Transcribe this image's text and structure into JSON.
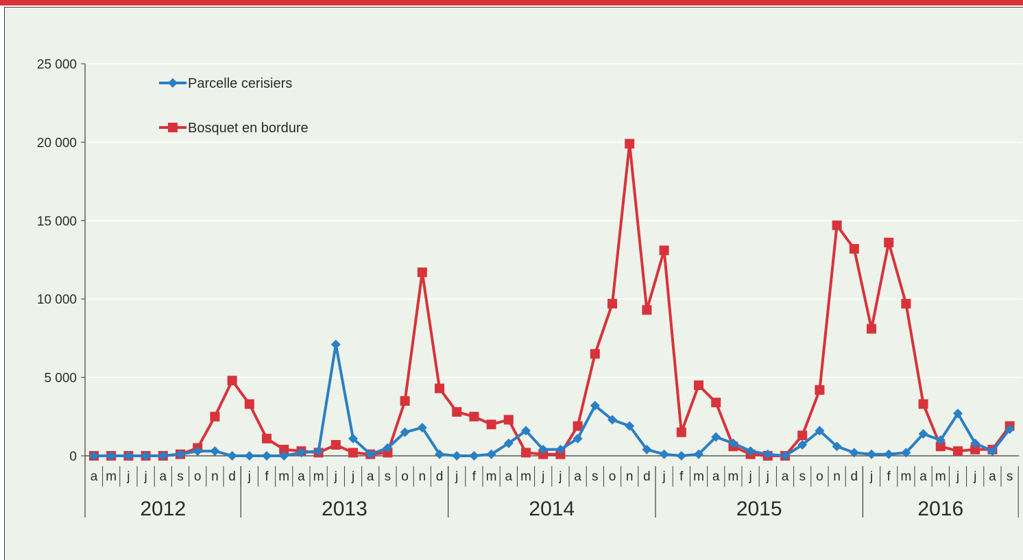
{
  "chart_data": {
    "type": "line",
    "title": "",
    "xlabel": "",
    "ylabel": "",
    "ylim": [
      0,
      25000
    ],
    "yticks": [
      0,
      5000,
      10000,
      15000,
      20000,
      25000
    ],
    "ytick_labels": [
      "0",
      "5 000",
      "10 000",
      "15 000",
      "20 000",
      "25 000"
    ],
    "grid": "horizontal",
    "legend_position": "top-left",
    "x": [
      "a",
      "m",
      "j",
      "j",
      "a",
      "s",
      "o",
      "n",
      "d",
      "j",
      "f",
      "m",
      "a",
      "m",
      "j",
      "j",
      "a",
      "s",
      "o",
      "n",
      "d",
      "j",
      "f",
      "m",
      "a",
      "m",
      "j",
      "j",
      "a",
      "s",
      "o",
      "n",
      "d",
      "j",
      "f",
      "m",
      "a",
      "m",
      "j",
      "j",
      "a",
      "s",
      "o",
      "n",
      "d",
      "j",
      "f",
      "m",
      "a",
      "m",
      "j",
      "j",
      "a",
      "s"
    ],
    "years": [
      {
        "label": "2012",
        "start": 0,
        "count": 9
      },
      {
        "label": "2013",
        "start": 9,
        "count": 12
      },
      {
        "label": "2014",
        "start": 21,
        "count": 12
      },
      {
        "label": "2015",
        "start": 33,
        "count": 12
      },
      {
        "label": "2016",
        "start": 45,
        "count": 9
      }
    ],
    "series": [
      {
        "name": "Parcelle cerisiers",
        "color": "#2b7fc4",
        "marker": "diamond",
        "values": [
          0,
          0,
          0,
          0,
          0,
          100,
          300,
          300,
          0,
          0,
          0,
          0,
          200,
          300,
          7100,
          1100,
          100,
          500,
          1500,
          1800,
          100,
          0,
          0,
          100,
          800,
          1600,
          400,
          400,
          1100,
          3200,
          2300,
          1900,
          400,
          100,
          0,
          100,
          1200,
          800,
          300,
          100,
          0,
          700,
          1600,
          600,
          200,
          100,
          100,
          200,
          1400,
          1000,
          2700,
          800,
          300,
          1700
        ]
      },
      {
        "name": "Bosquet en bordure",
        "color": "#d8333a",
        "marker": "square",
        "values": [
          0,
          0,
          0,
          0,
          0,
          100,
          500,
          2500,
          4800,
          3300,
          1100,
          400,
          300,
          200,
          700,
          200,
          100,
          200,
          3500,
          11700,
          4300,
          2800,
          2500,
          2000,
          2300,
          200,
          100,
          100,
          1900,
          6500,
          9700,
          19900,
          9300,
          13100,
          1500,
          4500,
          3400,
          600,
          100,
          0,
          0,
          1300,
          4200,
          14700,
          13200,
          8100,
          13600,
          9700,
          3300,
          600,
          300,
          400,
          400,
          1900
        ]
      }
    ]
  },
  "colors": {
    "top_band": "#d8333a",
    "panel_background": "#edf3eb",
    "axis": "#3b3b3b",
    "grid": "#ffffff",
    "text": "#2b2b2b"
  }
}
